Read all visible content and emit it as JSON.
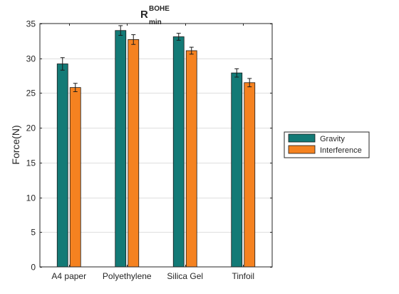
{
  "chart_data": {
    "type": "bar",
    "title": {
      "main": "R",
      "superscript": "BOHE",
      "subscript": "min"
    },
    "xlabel": "",
    "ylabel": "Force(N)",
    "ylim": [
      0,
      35
    ],
    "yticks": [
      0,
      5,
      10,
      15,
      20,
      25,
      30,
      35
    ],
    "grid": true,
    "legend_position": "outside-right",
    "categories": [
      "A4 paper",
      "Polyethylene",
      "Silica Gel",
      "Tinfoil"
    ],
    "series": [
      {
        "name": "Gravity",
        "color": "#137a76",
        "values": [
          29.2,
          34.0,
          33.1,
          27.9
        ],
        "errors": [
          0.9,
          0.7,
          0.5,
          0.6
        ]
      },
      {
        "name": "Interference",
        "color": "#f58220",
        "values": [
          25.8,
          32.7,
          31.1,
          26.5
        ],
        "errors": [
          0.6,
          0.7,
          0.5,
          0.6
        ]
      }
    ]
  }
}
